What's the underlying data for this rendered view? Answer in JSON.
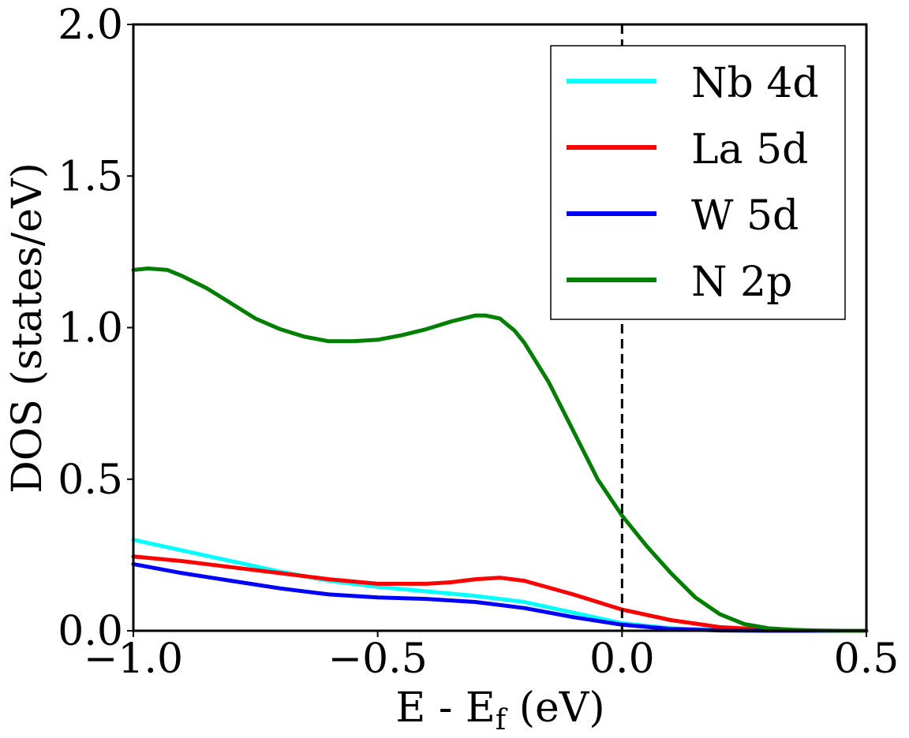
{
  "chart_data": {
    "type": "line",
    "title": "",
    "xlabel_main": "E - E",
    "xlabel_sub": "f",
    "xlabel_unit": " (eV)",
    "ylabel": "DOS (states/eV)",
    "xlim": [
      -1.0,
      0.5
    ],
    "ylim": [
      0.0,
      2.0
    ],
    "xticks": [
      -1.0,
      -0.5,
      0.0,
      0.5
    ],
    "xtick_labels": [
      "−1.0",
      "−0.5",
      "0.0",
      "0.5"
    ],
    "yticks": [
      0.0,
      0.5,
      1.0,
      1.5,
      2.0
    ],
    "ytick_labels": [
      "0.0",
      "0.5",
      "1.0",
      "1.5",
      "2.0"
    ],
    "fermi_level": 0.0,
    "legend_position": "top-right",
    "series": [
      {
        "name": "Nb 4d",
        "color": "#00ffff",
        "x": [
          -1.0,
          -0.9,
          -0.8,
          -0.7,
          -0.6,
          -0.5,
          -0.4,
          -0.3,
          -0.25,
          -0.2,
          -0.1,
          0.0,
          0.1,
          0.2,
          0.3,
          0.4,
          0.5
        ],
        "y": [
          0.3,
          0.265,
          0.23,
          0.195,
          0.165,
          0.145,
          0.13,
          0.115,
          0.105,
          0.095,
          0.06,
          0.025,
          0.008,
          0.002,
          0.0,
          0.0,
          0.0
        ]
      },
      {
        "name": "La 5d",
        "color": "#ff0000",
        "x": [
          -1.0,
          -0.9,
          -0.8,
          -0.7,
          -0.6,
          -0.5,
          -0.4,
          -0.35,
          -0.3,
          -0.25,
          -0.2,
          -0.1,
          0.0,
          0.1,
          0.2,
          0.3,
          0.4,
          0.5
        ],
        "y": [
          0.245,
          0.23,
          0.21,
          0.19,
          0.17,
          0.155,
          0.155,
          0.16,
          0.17,
          0.175,
          0.165,
          0.12,
          0.07,
          0.035,
          0.012,
          0.003,
          0.0,
          0.0
        ]
      },
      {
        "name": "W 5d",
        "color": "#0000ff",
        "x": [
          -1.0,
          -0.9,
          -0.8,
          -0.7,
          -0.6,
          -0.5,
          -0.4,
          -0.3,
          -0.25,
          -0.2,
          -0.1,
          0.0,
          0.1,
          0.2,
          0.3,
          0.4,
          0.5
        ],
        "y": [
          0.22,
          0.19,
          0.165,
          0.14,
          0.12,
          0.11,
          0.105,
          0.095,
          0.085,
          0.075,
          0.045,
          0.02,
          0.006,
          0.001,
          0.0,
          0.0,
          0.0
        ]
      },
      {
        "name": "N 2p",
        "color": "#008000",
        "x": [
          -1.0,
          -0.97,
          -0.93,
          -0.9,
          -0.85,
          -0.8,
          -0.75,
          -0.7,
          -0.65,
          -0.6,
          -0.55,
          -0.5,
          -0.45,
          -0.4,
          -0.35,
          -0.3,
          -0.28,
          -0.25,
          -0.22,
          -0.2,
          -0.15,
          -0.1,
          -0.05,
          0.0,
          0.05,
          0.1,
          0.15,
          0.2,
          0.25,
          0.3,
          0.35,
          0.4,
          0.45,
          0.5
        ],
        "y": [
          1.19,
          1.195,
          1.19,
          1.17,
          1.13,
          1.08,
          1.03,
          0.995,
          0.97,
          0.955,
          0.955,
          0.96,
          0.975,
          0.995,
          1.02,
          1.04,
          1.04,
          1.03,
          0.99,
          0.95,
          0.82,
          0.66,
          0.5,
          0.38,
          0.28,
          0.19,
          0.11,
          0.055,
          0.022,
          0.008,
          0.003,
          0.001,
          0.0,
          0.0
        ]
      }
    ]
  }
}
